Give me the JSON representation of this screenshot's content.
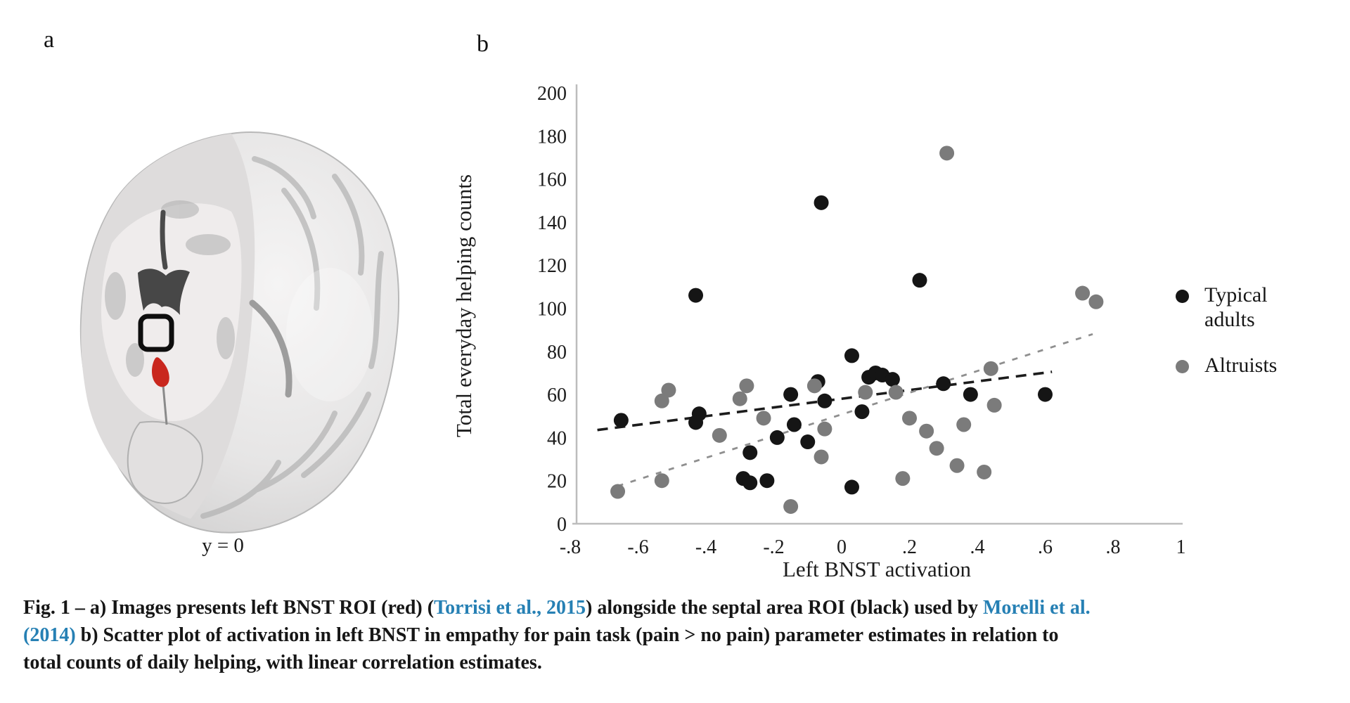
{
  "figure": {
    "panel_a_label": "a",
    "panel_b_label": "b",
    "brain_caption": "y = 0"
  },
  "legend": {
    "items": [
      {
        "label": "Typical adults",
        "color": "#151515"
      },
      {
        "label": "Altruists",
        "color": "#7b7b7b"
      }
    ]
  },
  "caption": {
    "link_color": "#2680b4",
    "segments": [
      {
        "text": "Fig. 1 – a) Images presents left BNST ROI (red) (",
        "link": false
      },
      {
        "text": "Torrisi et al., 2015",
        "link": true
      },
      {
        "text": ") alongside the septal area ROI (black) used by ",
        "link": false
      },
      {
        "text": "Morelli et al.",
        "link": true
      },
      {
        "br": true
      },
      {
        "text": "(2014)",
        "link": true
      },
      {
        "text": " b) Scatter plot of activation in left BNST in empathy for pain task (pain > no pain) parameter estimates in relation to",
        "link": false
      },
      {
        "br": true
      },
      {
        "text": "total counts of daily helping, with linear correlation estimates.",
        "link": false
      }
    ]
  },
  "chart_data": {
    "type": "scatter",
    "title": "",
    "xlabel": "Left BNST activation",
    "ylabel": "Total everyday helping counts",
    "xlim": [
      -0.9,
      1.05
    ],
    "ylim": [
      0,
      200
    ],
    "grid": false,
    "legend_position": "right",
    "x_ticks": [
      {
        "label": "-.8",
        "value": -0.8
      },
      {
        "label": "-.6",
        "value": -0.6
      },
      {
        "label": "-.4",
        "value": -0.4
      },
      {
        "label": "-.2",
        "value": -0.2
      },
      {
        "label": "0",
        "value": 0
      },
      {
        "label": ".2",
        "value": 0.2
      },
      {
        "label": ".4",
        "value": 0.4
      },
      {
        "label": ".6",
        "value": 0.6
      },
      {
        "label": ".8",
        "value": 0.8
      },
      {
        "label": "1",
        "value": 1
      }
    ],
    "y_ticks": [
      {
        "label": "0",
        "value": 0
      },
      {
        "label": "20",
        "value": 20
      },
      {
        "label": "40",
        "value": 40
      },
      {
        "label": "60",
        "value": 60
      },
      {
        "label": "80",
        "value": 80
      },
      {
        "label": "100",
        "value": 100
      },
      {
        "label": "120",
        "value": 120
      },
      {
        "label": "140",
        "value": 140
      },
      {
        "label": "160",
        "value": 160
      },
      {
        "label": "180",
        "value": 180
      },
      {
        "label": "200",
        "value": 200
      }
    ],
    "series": [
      {
        "name": "Typical adults",
        "color": "#151515",
        "marker": "circle",
        "points": [
          [
            -0.65,
            48
          ],
          [
            -0.43,
            106
          ],
          [
            -0.42,
            51
          ],
          [
            -0.43,
            47
          ],
          [
            -0.29,
            21
          ],
          [
            -0.27,
            19
          ],
          [
            -0.22,
            20
          ],
          [
            -0.27,
            33
          ],
          [
            -0.19,
            40
          ],
          [
            -0.15,
            60
          ],
          [
            -0.14,
            46
          ],
          [
            -0.1,
            38
          ],
          [
            -0.07,
            66
          ],
          [
            -0.06,
            149
          ],
          [
            -0.05,
            57
          ],
          [
            0.03,
            78
          ],
          [
            0.03,
            17
          ],
          [
            0.06,
            52
          ],
          [
            0.08,
            68
          ],
          [
            0.1,
            70
          ],
          [
            0.12,
            69
          ],
          [
            0.15,
            67
          ],
          [
            0.23,
            113
          ],
          [
            0.3,
            65
          ],
          [
            0.38,
            60
          ],
          [
            0.6,
            60
          ]
        ],
        "trend": {
          "x1": -0.72,
          "y1": 43.5,
          "x2": 0.62,
          "y2": 70.5,
          "color": "#1c1c1c",
          "width": 3.6,
          "dash": "15 10"
        }
      },
      {
        "name": "Altruists",
        "color": "#7b7b7b",
        "marker": "circle",
        "points": [
          [
            -0.66,
            15
          ],
          [
            -0.53,
            20
          ],
          [
            -0.53,
            57
          ],
          [
            -0.51,
            62
          ],
          [
            -0.36,
            41
          ],
          [
            -0.3,
            58
          ],
          [
            -0.28,
            64
          ],
          [
            -0.23,
            49
          ],
          [
            -0.15,
            8
          ],
          [
            -0.08,
            64
          ],
          [
            -0.06,
            31
          ],
          [
            -0.05,
            44
          ],
          [
            0.07,
            61
          ],
          [
            0.16,
            61
          ],
          [
            0.18,
            21
          ],
          [
            0.2,
            49
          ],
          [
            0.25,
            43
          ],
          [
            0.28,
            35
          ],
          [
            0.31,
            172
          ],
          [
            0.34,
            27
          ],
          [
            0.36,
            46
          ],
          [
            0.42,
            24
          ],
          [
            0.44,
            72
          ],
          [
            0.45,
            55
          ],
          [
            0.71,
            107
          ],
          [
            0.75,
            103
          ]
        ],
        "trend": {
          "x1": -0.66,
          "y1": 17.5,
          "x2": 0.74,
          "y2": 88,
          "color": "#8f8f8f",
          "width": 2.8,
          "dash": "8 11"
        }
      }
    ]
  }
}
